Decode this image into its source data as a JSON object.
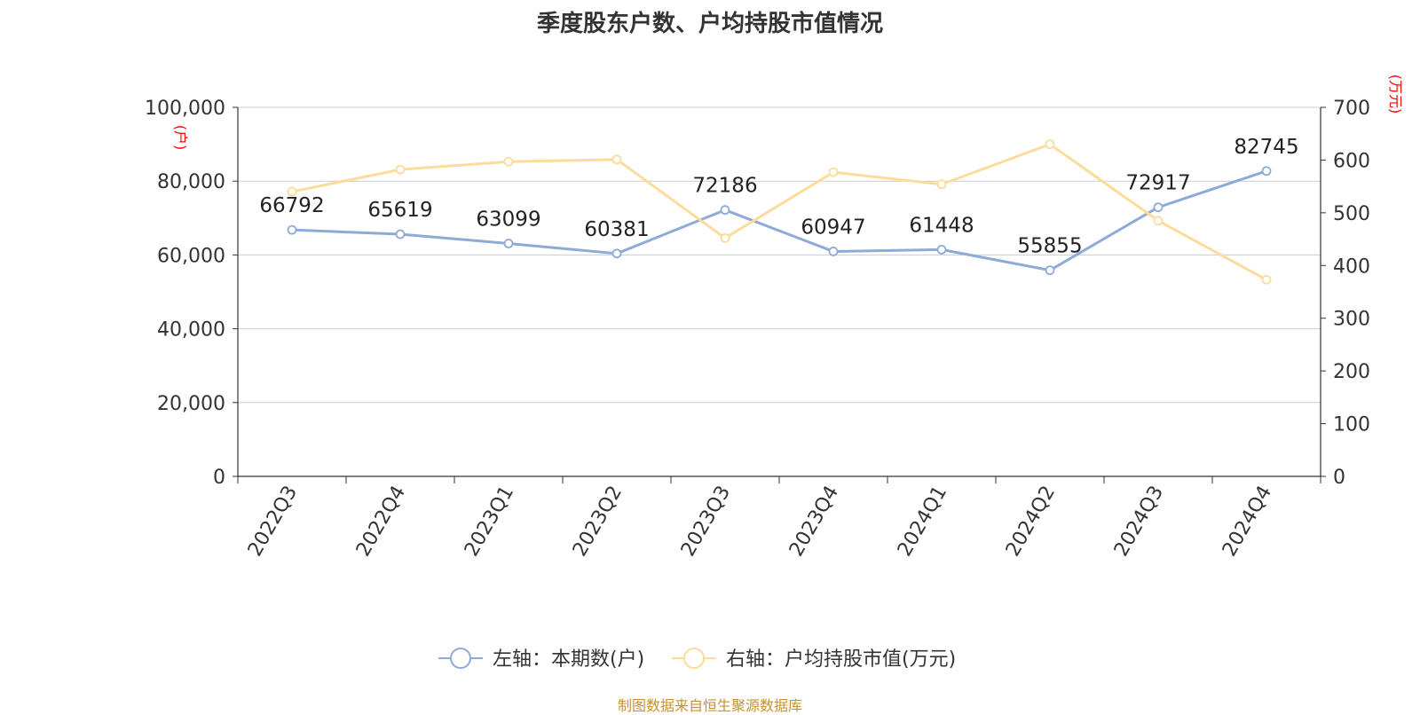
{
  "title": "季度股东户数、户均持股市值情况",
  "footer": "制图数据来自恒生聚源数据库",
  "chart_data": {
    "type": "line",
    "categories": [
      "2022Q3",
      "2022Q4",
      "2023Q1",
      "2023Q2",
      "2023Q3",
      "2023Q4",
      "2024Q1",
      "2024Q2",
      "2024Q3",
      "2024Q4"
    ],
    "left_axis": {
      "label": "(户)",
      "ylim": [
        0,
        100000
      ],
      "ticks": [
        0,
        20000,
        40000,
        60000,
        80000,
        100000
      ],
      "tick_labels": [
        "0",
        "20,000",
        "40,000",
        "60,000",
        "80,000",
        "100,000"
      ]
    },
    "right_axis": {
      "label": "(万元)",
      "ylim": [
        0,
        700
      ],
      "ticks": [
        0,
        100,
        200,
        300,
        400,
        500,
        600,
        700
      ],
      "tick_labels": [
        "0",
        "100",
        "200",
        "300",
        "400",
        "500",
        "600",
        "700"
      ]
    },
    "series": [
      {
        "name": "左轴：本期数(户)",
        "axis": "left",
        "color": "#8eaad6",
        "values": [
          66792,
          65619,
          63099,
          60381,
          72186,
          60947,
          61448,
          55855,
          72917,
          82745
        ],
        "show_labels": true
      },
      {
        "name": "右轴：户均持股市值(万元)",
        "axis": "right",
        "color": "#fddb9b",
        "values": [
          540,
          582,
          597,
          601,
          452,
          577,
          554,
          630,
          485,
          373
        ],
        "show_labels": false
      }
    ],
    "grid": true,
    "legend_position": "bottom-center",
    "axis_label_color": "#ff0000"
  }
}
